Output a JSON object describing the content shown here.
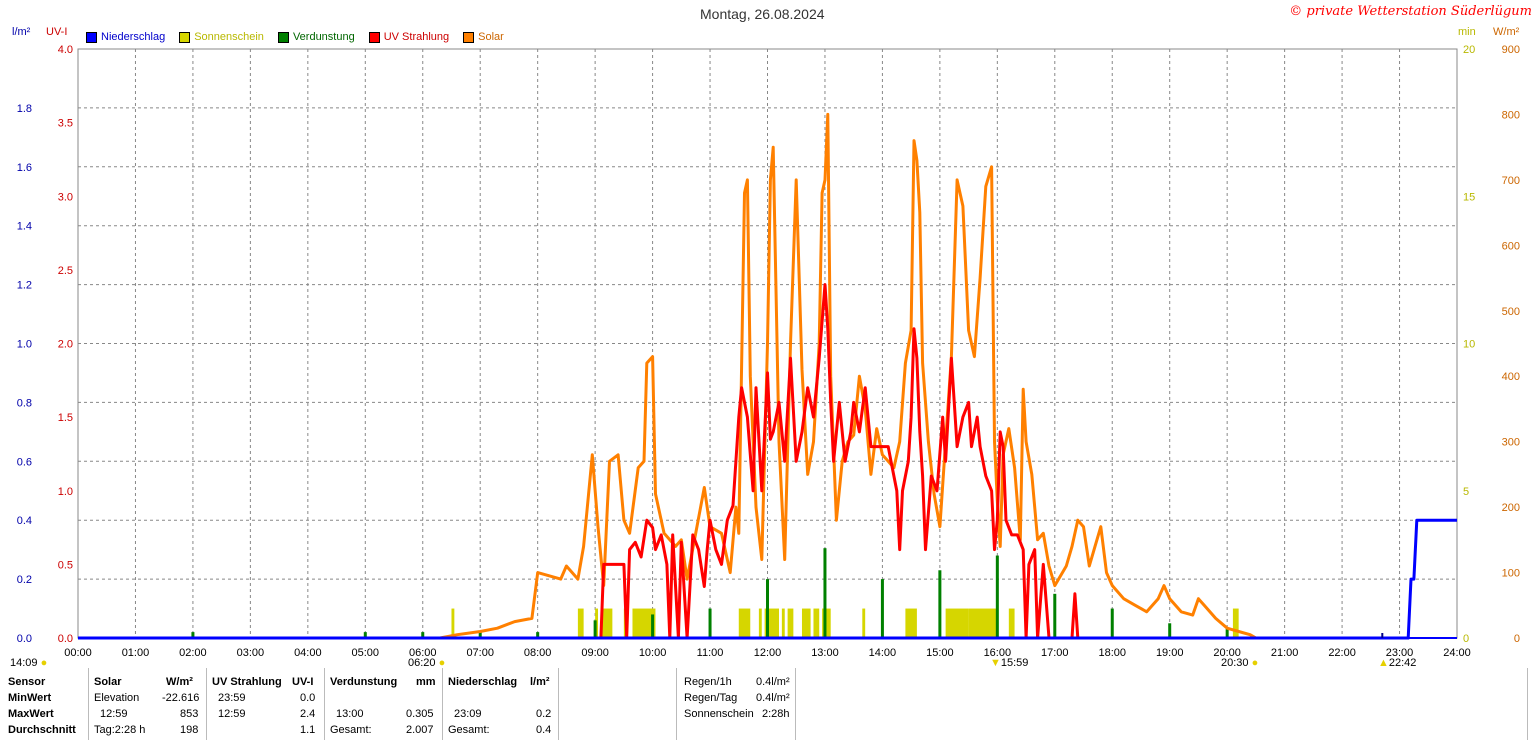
{
  "header": {
    "title": "Montag, 26.08.2024",
    "copyright": "© private Wetterstation Süderlügum"
  },
  "axis_units": {
    "left_precip": "l/m²",
    "left_uv": "UV-I",
    "right_min": "min",
    "right_solar": "W/m²"
  },
  "colors": {
    "precip": "#0000ff",
    "sunshine": "#d6d600",
    "evaporation": "#008000",
    "uv": "#ff0000",
    "solar": "#ff8000",
    "grid": "#888888"
  },
  "markers": {
    "moon_rise": "14:09",
    "sunrise": "06:20",
    "solar_noon": "15:59",
    "sunset": "20:30",
    "moon_set": "22:42"
  },
  "chart_data": {
    "type": "line",
    "title": "Montag, 26.08.2024",
    "x_ticks": [
      "00:00",
      "01:00",
      "02:00",
      "03:00",
      "04:00",
      "05:00",
      "06:00",
      "07:00",
      "08:00",
      "09:00",
      "10:00",
      "11:00",
      "12:00",
      "13:00",
      "14:00",
      "15:00",
      "16:00",
      "17:00",
      "18:00",
      "19:00",
      "20:00",
      "21:00",
      "22:00",
      "23:00",
      "24:00"
    ],
    "xlim_hours": [
      0,
      24
    ],
    "axes": {
      "precip": {
        "ylim": [
          0,
          2.0
        ],
        "ticks": [
          "0.0",
          "0.2",
          "0.4",
          "0.6",
          "0.8",
          "1.0",
          "1.2",
          "1.4",
          "1.6",
          "1.8"
        ]
      },
      "uv": {
        "ylim": [
          0,
          4.0
        ],
        "ticks": [
          "0.0",
          "0.5",
          "1.0",
          "1.5",
          "2.0",
          "2.5",
          "3.0",
          "3.5",
          "4.0"
        ]
      },
      "sunshine_min": {
        "ylim": [
          0,
          20
        ],
        "ticks": [
          "0",
          "5",
          "10",
          "15",
          "20"
        ]
      },
      "solar": {
        "ylim": [
          0,
          900
        ],
        "ticks": [
          "0",
          "100",
          "200",
          "300",
          "400",
          "500",
          "600",
          "700",
          "800",
          "900"
        ]
      }
    },
    "grid": true,
    "legend": [
      "Niederschlag",
      "Sonnenschein",
      "Verdunstung",
      "UV Strahlung",
      "Solar"
    ],
    "series": [
      {
        "name": "Solar",
        "axis": "solar",
        "points": [
          [
            6.3,
            0
          ],
          [
            6.6,
            5
          ],
          [
            7.0,
            10
          ],
          [
            7.3,
            15
          ],
          [
            7.6,
            25
          ],
          [
            7.9,
            30
          ],
          [
            8.0,
            100
          ],
          [
            8.2,
            95
          ],
          [
            8.4,
            90
          ],
          [
            8.5,
            110
          ],
          [
            8.7,
            90
          ],
          [
            8.8,
            140
          ],
          [
            8.95,
            280
          ],
          [
            9.05,
            170
          ],
          [
            9.15,
            80
          ],
          [
            9.25,
            270
          ],
          [
            9.4,
            280
          ],
          [
            9.5,
            180
          ],
          [
            9.6,
            160
          ],
          [
            9.75,
            260
          ],
          [
            9.85,
            270
          ],
          [
            9.9,
            420
          ],
          [
            10.0,
            430
          ],
          [
            10.05,
            220
          ],
          [
            10.2,
            160
          ],
          [
            10.4,
            140
          ],
          [
            10.5,
            150
          ],
          [
            10.6,
            90
          ],
          [
            10.75,
            160
          ],
          [
            10.9,
            230
          ],
          [
            11.0,
            170
          ],
          [
            11.2,
            160
          ],
          [
            11.35,
            100
          ],
          [
            11.45,
            200
          ],
          [
            11.5,
            160
          ],
          [
            11.6,
            680
          ],
          [
            11.65,
            700
          ],
          [
            11.7,
            400
          ],
          [
            11.8,
            200
          ],
          [
            11.9,
            120
          ],
          [
            12.0,
            450
          ],
          [
            12.05,
            700
          ],
          [
            12.1,
            750
          ],
          [
            12.2,
            300
          ],
          [
            12.3,
            120
          ],
          [
            12.4,
            450
          ],
          [
            12.5,
            700
          ],
          [
            12.6,
            410
          ],
          [
            12.7,
            250
          ],
          [
            12.8,
            300
          ],
          [
            12.9,
            450
          ],
          [
            12.95,
            680
          ],
          [
            13.0,
            700
          ],
          [
            13.05,
            800
          ],
          [
            13.1,
            400
          ],
          [
            13.2,
            180
          ],
          [
            13.3,
            270
          ],
          [
            13.4,
            300
          ],
          [
            13.5,
            310
          ],
          [
            13.6,
            400
          ],
          [
            13.7,
            350
          ],
          [
            13.8,
            250
          ],
          [
            13.9,
            320
          ],
          [
            14.0,
            280
          ],
          [
            14.1,
            270
          ],
          [
            14.2,
            260
          ],
          [
            14.3,
            300
          ],
          [
            14.4,
            420
          ],
          [
            14.5,
            470
          ],
          [
            14.55,
            760
          ],
          [
            14.6,
            730
          ],
          [
            14.65,
            650
          ],
          [
            14.7,
            420
          ],
          [
            14.8,
            300
          ],
          [
            14.9,
            220
          ],
          [
            15.0,
            170
          ],
          [
            15.1,
            300
          ],
          [
            15.2,
            430
          ],
          [
            15.3,
            700
          ],
          [
            15.4,
            660
          ],
          [
            15.5,
            470
          ],
          [
            15.6,
            430
          ],
          [
            15.7,
            550
          ],
          [
            15.8,
            690
          ],
          [
            15.9,
            720
          ],
          [
            15.95,
            300
          ],
          [
            16.0,
            210
          ],
          [
            16.05,
            140
          ],
          [
            16.1,
            280
          ],
          [
            16.2,
            320
          ],
          [
            16.3,
            260
          ],
          [
            16.4,
            150
          ],
          [
            16.45,
            380
          ],
          [
            16.5,
            300
          ],
          [
            16.6,
            250
          ],
          [
            16.7,
            150
          ],
          [
            16.8,
            160
          ],
          [
            16.9,
            110
          ],
          [
            17.0,
            80
          ],
          [
            17.2,
            110
          ],
          [
            17.3,
            140
          ],
          [
            17.4,
            180
          ],
          [
            17.5,
            170
          ],
          [
            17.6,
            110
          ],
          [
            17.7,
            140
          ],
          [
            17.8,
            170
          ],
          [
            17.9,
            100
          ],
          [
            18.0,
            80
          ],
          [
            18.2,
            60
          ],
          [
            18.4,
            50
          ],
          [
            18.6,
            40
          ],
          [
            18.8,
            60
          ],
          [
            18.9,
            80
          ],
          [
            19.0,
            60
          ],
          [
            19.2,
            40
          ],
          [
            19.4,
            35
          ],
          [
            19.5,
            60
          ],
          [
            19.6,
            50
          ],
          [
            19.8,
            30
          ],
          [
            20.0,
            15
          ],
          [
            20.2,
            10
          ],
          [
            20.4,
            5
          ],
          [
            20.5,
            0
          ]
        ]
      },
      {
        "name": "UV Strahlung",
        "axis": "uv",
        "points": [
          [
            9.1,
            0
          ],
          [
            9.15,
            0.5
          ],
          [
            9.5,
            0.5
          ],
          [
            9.55,
            0
          ],
          [
            9.6,
            0.6
          ],
          [
            9.7,
            0.65
          ],
          [
            9.8,
            0.55
          ],
          [
            9.9,
            0.8
          ],
          [
            10.0,
            0.75
          ],
          [
            10.05,
            0.6
          ],
          [
            10.15,
            0.7
          ],
          [
            10.25,
            0.5
          ],
          [
            10.3,
            0
          ],
          [
            10.35,
            0.7
          ],
          [
            10.45,
            0
          ],
          [
            10.5,
            0.65
          ],
          [
            10.6,
            0
          ],
          [
            10.7,
            0.7
          ],
          [
            10.8,
            0.6
          ],
          [
            10.9,
            0.35
          ],
          [
            10.95,
            0.6
          ],
          [
            11.0,
            0.8
          ],
          [
            11.1,
            0.6
          ],
          [
            11.2,
            0.5
          ],
          [
            11.3,
            0.8
          ],
          [
            11.4,
            0.9
          ],
          [
            11.5,
            1.5
          ],
          [
            11.55,
            1.7
          ],
          [
            11.65,
            1.5
          ],
          [
            11.75,
            1.0
          ],
          [
            11.8,
            1.7
          ],
          [
            11.9,
            1.0
          ],
          [
            12.0,
            1.8
          ],
          [
            12.05,
            1.35
          ],
          [
            12.1,
            1.4
          ],
          [
            12.2,
            1.6
          ],
          [
            12.3,
            1.2
          ],
          [
            12.4,
            1.9
          ],
          [
            12.5,
            1.2
          ],
          [
            12.6,
            1.4
          ],
          [
            12.7,
            1.7
          ],
          [
            12.8,
            1.5
          ],
          [
            12.9,
            1.9
          ],
          [
            13.0,
            2.4
          ],
          [
            13.05,
            2.1
          ],
          [
            13.1,
            1.6
          ],
          [
            13.15,
            1.2
          ],
          [
            13.25,
            1.6
          ],
          [
            13.35,
            1.2
          ],
          [
            13.45,
            1.4
          ],
          [
            13.5,
            1.6
          ],
          [
            13.6,
            1.4
          ],
          [
            13.7,
            1.7
          ],
          [
            13.8,
            1.3
          ],
          [
            13.9,
            1.3
          ],
          [
            14.0,
            1.3
          ],
          [
            14.1,
            1.3
          ],
          [
            14.15,
            1.2
          ],
          [
            14.25,
            1.0
          ],
          [
            14.3,
            0.6
          ],
          [
            14.35,
            1.0
          ],
          [
            14.45,
            1.2
          ],
          [
            14.5,
            1.5
          ],
          [
            14.55,
            2.1
          ],
          [
            14.6,
            1.9
          ],
          [
            14.65,
            1.4
          ],
          [
            14.7,
            1.1
          ],
          [
            14.75,
            0.6
          ],
          [
            14.85,
            1.1
          ],
          [
            14.95,
            1.0
          ],
          [
            15.05,
            1.5
          ],
          [
            15.1,
            1.2
          ],
          [
            15.2,
            1.9
          ],
          [
            15.3,
            1.3
          ],
          [
            15.4,
            1.5
          ],
          [
            15.5,
            1.6
          ],
          [
            15.55,
            1.3
          ],
          [
            15.65,
            1.5
          ],
          [
            15.7,
            1.3
          ],
          [
            15.8,
            1.1
          ],
          [
            15.9,
            1.0
          ],
          [
            15.95,
            0.6
          ],
          [
            16.0,
            0.8
          ],
          [
            16.05,
            1.4
          ],
          [
            16.1,
            1.3
          ],
          [
            16.15,
            0.8
          ],
          [
            16.25,
            0.7
          ],
          [
            16.35,
            0.7
          ],
          [
            16.45,
            0.6
          ],
          [
            16.5,
            0
          ],
          [
            16.55,
            0.5
          ],
          [
            16.65,
            0.6
          ],
          [
            16.7,
            0
          ],
          [
            16.8,
            0.5
          ],
          [
            16.9,
            0
          ],
          [
            17.0,
            0
          ],
          [
            17.3,
            0
          ],
          [
            17.35,
            0.3
          ],
          [
            17.4,
            0
          ]
        ]
      },
      {
        "name": "Niederschlag",
        "axis": "precip",
        "points": [
          [
            0,
            0
          ],
          [
            23.15,
            0
          ],
          [
            23.2,
            0.2
          ],
          [
            23.25,
            0.2
          ],
          [
            23.3,
            0.4
          ],
          [
            24,
            0.4
          ]
        ]
      }
    ],
    "bars": [
      {
        "name": "Sonnenschein",
        "axis": "sunshine_min",
        "intervals": [
          [
            6.5,
            6.55
          ],
          [
            8.7,
            8.8
          ],
          [
            9.0,
            9.05
          ],
          [
            9.1,
            9.3
          ],
          [
            9.5,
            9.55
          ],
          [
            9.65,
            10.05
          ],
          [
            11.5,
            11.7
          ],
          [
            11.85,
            11.9
          ],
          [
            11.95,
            12.2
          ],
          [
            12.25,
            12.3
          ],
          [
            12.35,
            12.45
          ],
          [
            12.6,
            12.75
          ],
          [
            12.8,
            12.9
          ],
          [
            12.95,
            13.1
          ],
          [
            13.65,
            13.7
          ],
          [
            14.4,
            14.6
          ],
          [
            15.1,
            15.5
          ],
          [
            15.5,
            16.0
          ],
          [
            16.2,
            16.3
          ],
          [
            20.1,
            20.2
          ]
        ],
        "value": 1
      },
      {
        "name": "Verdunstung",
        "axis": "precip",
        "points": [
          [
            2.0,
            0.02
          ],
          [
            5.0,
            0.02
          ],
          [
            6.0,
            0.02
          ],
          [
            7.0,
            0.02
          ],
          [
            8.0,
            0.02
          ],
          [
            9.0,
            0.06
          ],
          [
            10.0,
            0.08
          ],
          [
            11.0,
            0.1
          ],
          [
            12.0,
            0.2
          ],
          [
            13.0,
            0.305
          ],
          [
            14.0,
            0.2
          ],
          [
            15.0,
            0.23
          ],
          [
            16.0,
            0.28
          ],
          [
            17.0,
            0.15
          ],
          [
            18.0,
            0.1
          ],
          [
            19.0,
            0.05
          ],
          [
            20.0,
            0.03
          ]
        ]
      }
    ]
  },
  "stats": {
    "headers": {
      "sensor": "Sensor",
      "solar": "Solar",
      "solar_unit": "W/m²",
      "uv": "UV Strahlung",
      "uv_unit": "UV-I",
      "evap": "Verdunstung",
      "evap_unit": "mm",
      "precip": "Niederschlag",
      "precip_unit": "l/m²"
    },
    "rows": {
      "min_label": "MinWert",
      "max_label": "MaxWert",
      "avg_label": "Durchschnitt"
    },
    "solar": {
      "min_time": "Elevation",
      "min_val": "-22.616",
      "max_time": "12:59",
      "max_val": "853",
      "avg_time": "Tag:2:28 h",
      "avg_val": "198"
    },
    "uv": {
      "min_time": "23:59",
      "min_val": "0.0",
      "max_time": "12:59",
      "max_val": "2.4",
      "avg_val": "1.1"
    },
    "evap": {
      "max_time": "13:00",
      "max_val": "0.305",
      "total_label": "Gesamt:",
      "total_val": "2.007"
    },
    "precip": {
      "max_time": "23:09",
      "max_val": "0.2",
      "total_label": "Gesamt:",
      "total_val": "0.4"
    },
    "summary": {
      "rain_hour_label": "Regen/1h",
      "rain_hour_val": "0.4l/m²",
      "rain_day_label": "Regen/Tag",
      "rain_day_val": "0.4l/m²",
      "sunshine_label": "Sonnenschein",
      "sunshine_val": "2:28h"
    }
  }
}
